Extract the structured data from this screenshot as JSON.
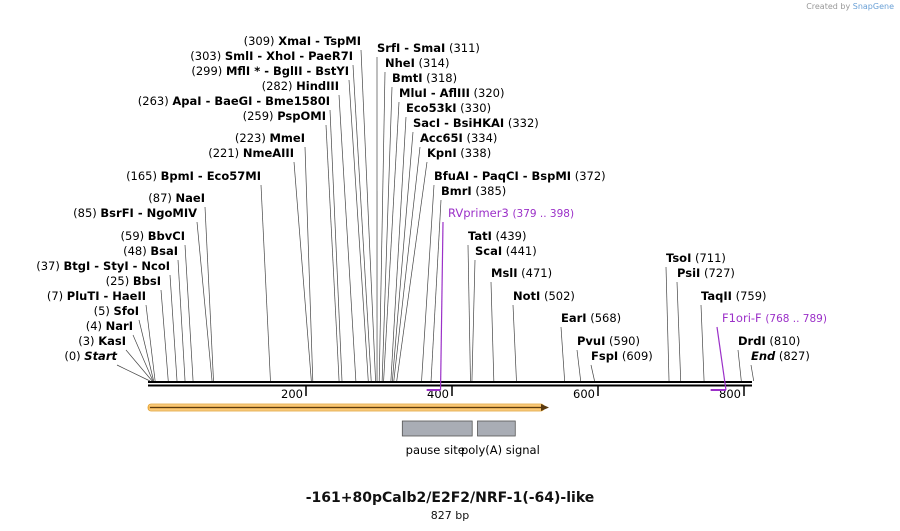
{
  "credit": {
    "prefix": "Created by",
    "brand": "SnapGene"
  },
  "title": "-161+80pCalb2/E2F2/NRF-1(-64)-like",
  "subtitle": "827 bp",
  "ruler": [
    {
      "pos": 200,
      "label": "200"
    },
    {
      "pos": 400,
      "label": "400"
    },
    {
      "pos": 600,
      "label": "600"
    },
    {
      "pos": 800,
      "label": "800"
    }
  ],
  "features": [
    {
      "name": "pause site",
      "start": 347,
      "end": 440
    },
    {
      "name": "poly(A) signal",
      "start": 450,
      "end": 499
    }
  ],
  "primers": [
    {
      "name": "RVprimer3",
      "range": "(379 .. 398)",
      "start": 379,
      "end": 398
    },
    {
      "name": "F1ori-F",
      "range": "(768 .. 789)",
      "start": 768,
      "end": 789
    }
  ],
  "sites": [
    {
      "id": "start",
      "side": "L",
      "pre": "(0)",
      "name": "Start",
      "pos": 0,
      "italic": true
    },
    {
      "id": "kasi",
      "side": "L",
      "pre": "(3)",
      "name": "KasI",
      "pos": 3
    },
    {
      "id": "nari",
      "side": "L",
      "pre": "(4)",
      "name": "NarI",
      "pos": 4
    },
    {
      "id": "sfoi",
      "side": "L",
      "pre": "(5)",
      "name": "SfoI",
      "pos": 5
    },
    {
      "id": "pluti",
      "side": "L",
      "pre": "(7)",
      "name": "PluTI - HaeII",
      "pos": 7
    },
    {
      "id": "bbsi",
      "side": "L",
      "pre": "(25)",
      "name": "BbsI",
      "pos": 25
    },
    {
      "id": "btgi",
      "side": "L",
      "pre": "(37)",
      "name": "BtgI - StyI - NcoI",
      "pos": 37
    },
    {
      "id": "bsai",
      "side": "L",
      "pre": "(48)",
      "name": "BsaI",
      "pos": 48
    },
    {
      "id": "bbvci",
      "side": "L",
      "pre": "(59)",
      "name": "BbvCI",
      "pos": 59
    },
    {
      "id": "bsrfi",
      "side": "L",
      "pre": "(85)",
      "name": "BsrFI - NgoMIV",
      "pos": 85
    },
    {
      "id": "naei",
      "side": "L",
      "pre": "(87)",
      "name": "NaeI",
      "pos": 87
    },
    {
      "id": "bpmi",
      "side": "L",
      "pre": "(165)",
      "name": "BpmI - Eco57MI",
      "pos": 165
    },
    {
      "id": "nmeaiii",
      "side": "L",
      "pre": "(221)",
      "name": "NmeAIII",
      "pos": 221
    },
    {
      "id": "mmei",
      "side": "L",
      "pre": "(223)",
      "name": "MmeI",
      "pos": 223
    },
    {
      "id": "psp",
      "side": "L",
      "pre": "(259)",
      "name": "PspOMI",
      "pos": 259
    },
    {
      "id": "apai",
      "side": "L",
      "pre": "(263)",
      "name": "ApaI - BaeGI - Bme1580I",
      "pos": 263
    },
    {
      "id": "hind",
      "side": "L",
      "pre": "(282)",
      "name": "HindIII",
      "pos": 282
    },
    {
      "id": "mfli",
      "side": "L",
      "pre": "(299)",
      "name": "MflI * - BglII - BstYI",
      "pos": 299
    },
    {
      "id": "smli",
      "side": "L",
      "pre": "(303)",
      "name": "SmlI - XhoI - PaeR7I",
      "pos": 303
    },
    {
      "id": "xmai",
      "side": "L",
      "pre": "(309)",
      "name": "XmaI - TspMI",
      "pos": 309
    },
    {
      "id": "srfi",
      "side": "R",
      "name": "SrfI - SmaI",
      "post": "(311)",
      "pos": 311
    },
    {
      "id": "nhei",
      "side": "R",
      "name": "NheI",
      "post": "(314)",
      "pos": 314
    },
    {
      "id": "bmti",
      "side": "R",
      "name": "BmtI",
      "post": "(318)",
      "pos": 318
    },
    {
      "id": "mlui",
      "side": "R",
      "name": "MluI - AflIII",
      "post": "(320)",
      "pos": 320
    },
    {
      "id": "eco53",
      "side": "R",
      "name": "Eco53kI",
      "post": "(330)",
      "pos": 330
    },
    {
      "id": "saci",
      "side": "R",
      "name": "SacI - BsiHKAI",
      "post": "(332)",
      "pos": 332
    },
    {
      "id": "acc65",
      "side": "R",
      "name": "Acc65I",
      "post": "(334)",
      "pos": 334
    },
    {
      "id": "kpni",
      "side": "R",
      "name": "KpnI",
      "post": "(338)",
      "pos": 338
    },
    {
      "id": "bfuai",
      "side": "R",
      "name": "BfuAI - PaqCI - BspMI",
      "post": "(372)",
      "pos": 372
    },
    {
      "id": "bmri",
      "side": "R",
      "name": "BmrI",
      "post": "(385)",
      "pos": 385
    },
    {
      "id": "tati",
      "side": "R",
      "name": "TatI",
      "post": "(439)",
      "pos": 439
    },
    {
      "id": "scai",
      "side": "R",
      "name": "ScaI",
      "post": "(441)",
      "pos": 441
    },
    {
      "id": "msli",
      "side": "R",
      "name": "MslI",
      "post": "(471)",
      "pos": 471
    },
    {
      "id": "noti",
      "side": "R",
      "name": "NotI",
      "post": "(502)",
      "pos": 502
    },
    {
      "id": "eari",
      "side": "R",
      "name": "EarI",
      "post": "(568)",
      "pos": 568
    },
    {
      "id": "pvui",
      "side": "R",
      "name": "PvuI",
      "post": "(590)",
      "pos": 590
    },
    {
      "id": "fspi",
      "side": "R",
      "name": "FspI",
      "post": "(609)",
      "pos": 609
    },
    {
      "id": "tsoi",
      "side": "R",
      "name": "TsoI",
      "post": "(711)",
      "pos": 711
    },
    {
      "id": "psii",
      "side": "R",
      "name": "PsiI",
      "post": "(727)",
      "pos": 727
    },
    {
      "id": "taqii",
      "side": "R",
      "name": "TaqII",
      "post": "(759)",
      "pos": 759
    },
    {
      "id": "drdi",
      "side": "R",
      "name": "DrdI",
      "post": "(810)",
      "pos": 810
    },
    {
      "id": "end",
      "side": "R",
      "name": "End",
      "post": "(827)",
      "pos": 827,
      "italic": true
    }
  ],
  "colors": {
    "backbone": "#000000",
    "arrow": "#f5a623",
    "feature": "#a9adb5",
    "primer": "#9b30c8"
  }
}
